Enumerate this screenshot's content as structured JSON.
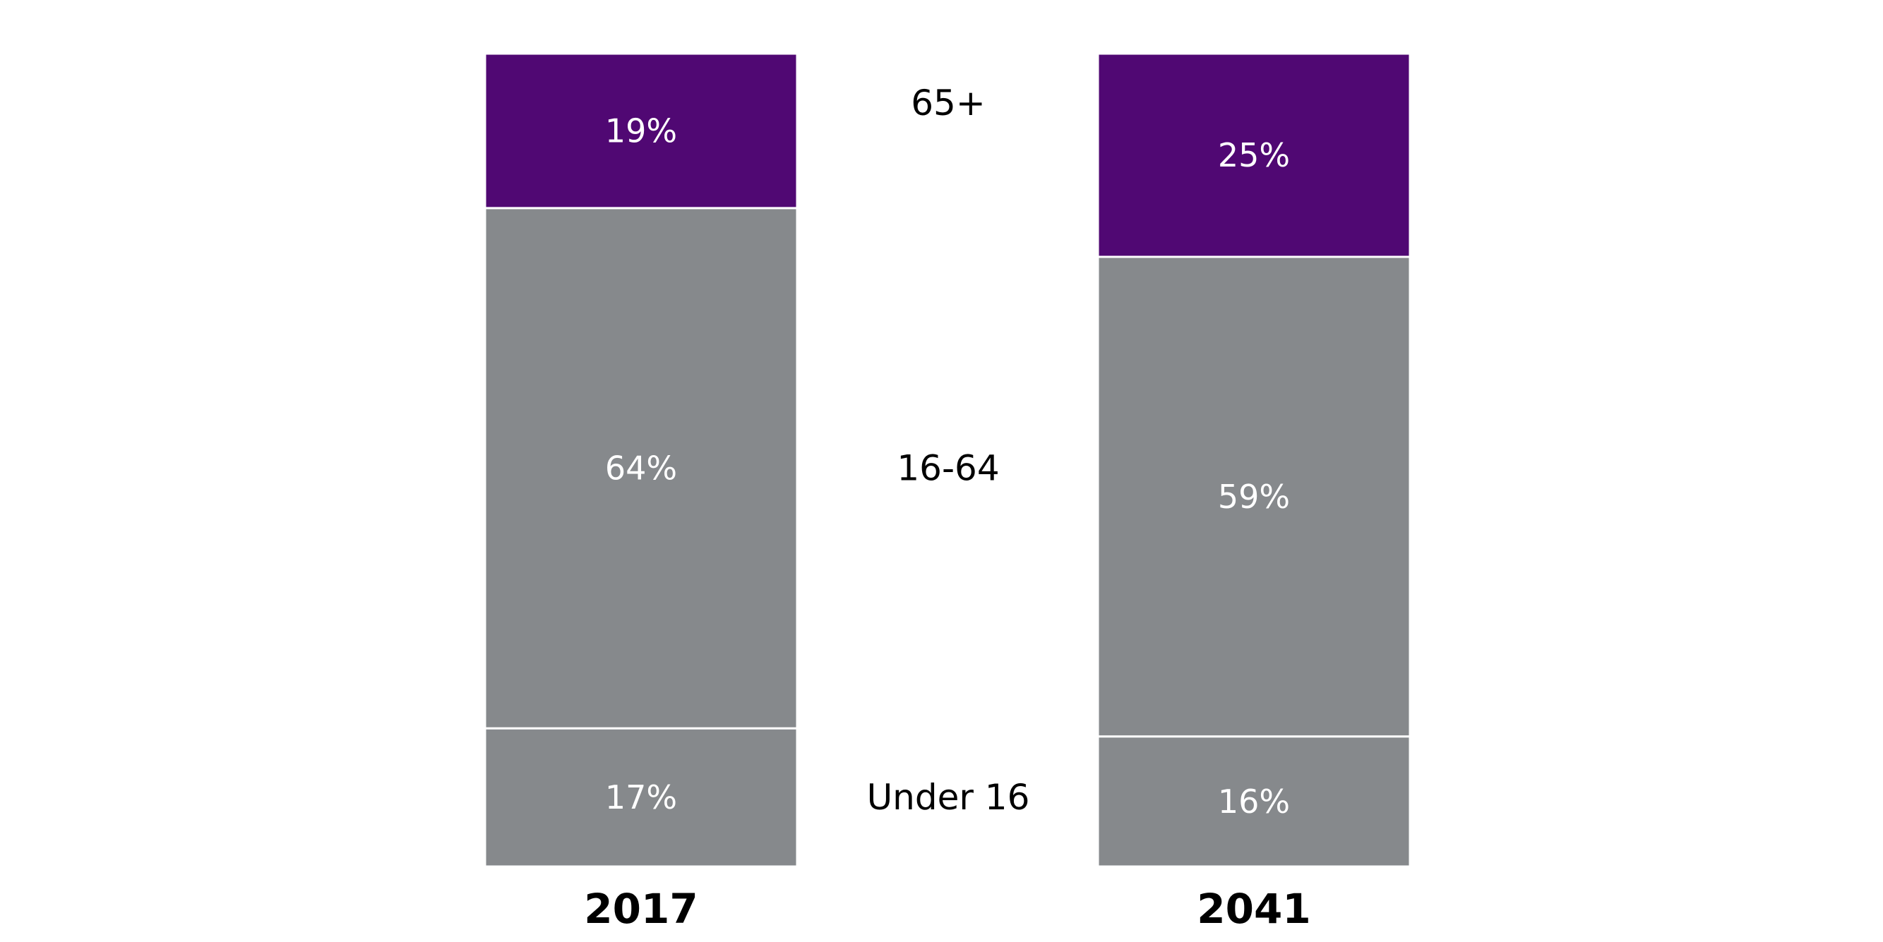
{
  "chart_data": {
    "type": "bar",
    "stacked": true,
    "normalized_percent": true,
    "categories": [
      "2017",
      "2041"
    ],
    "series": [
      {
        "name": "Under 16",
        "values": [
          17,
          16
        ],
        "labels": [
          "17%",
          "16%"
        ],
        "color": "#86898c"
      },
      {
        "name": "16-64",
        "values": [
          64,
          59
        ],
        "labels": [
          "64%",
          "59%"
        ],
        "color": "#86898c"
      },
      {
        "name": "65+",
        "values": [
          19,
          25
        ],
        "labels": [
          "19%",
          "25%"
        ],
        "color": "#500873"
      }
    ],
    "title": "",
    "xlabel": "",
    "ylabel": "",
    "ylim": [
      0,
      100
    ],
    "grid": false,
    "legend": "center"
  }
}
